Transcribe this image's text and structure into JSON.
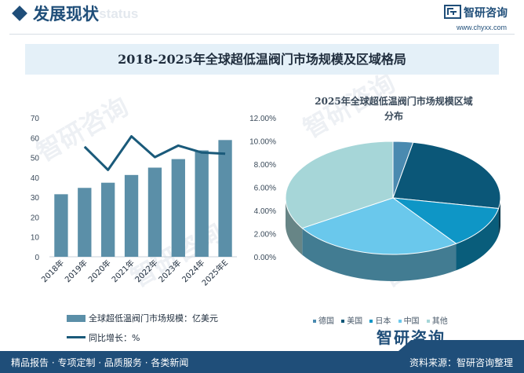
{
  "header": {
    "title": "发展现状",
    "ghost_text": "ent status",
    "logo_name": "智研咨询",
    "logo_url": "www.chyxx.com"
  },
  "banner_title": "2018-2025年全球超低温阀门市场规模及区域格局",
  "watermark_text": "智研咨询",
  "chart_data": [
    {
      "type": "bar",
      "categories": [
        "2018年",
        "2019年",
        "2020年",
        "2021年",
        "2022年",
        "2023年",
        "2024年",
        "2025年E"
      ],
      "series": [
        {
          "name": "全球超低温阀门市场规模：亿美元",
          "type": "bar",
          "axis": "left",
          "values": [
            31.5,
            34.7,
            37.3,
            41.2,
            44.9,
            49.2,
            53.6,
            58.8
          ]
        },
        {
          "name": "同比增长：%",
          "type": "line",
          "axis": "right",
          "values": [
            null,
            9.5,
            7.5,
            10.4,
            8.6,
            9.6,
            9.0,
            8.9
          ]
        }
      ],
      "left_axis": {
        "ylim": [
          0,
          70
        ],
        "ticks": [
          "0",
          "10",
          "20",
          "30",
          "40",
          "50",
          "60",
          "70"
        ]
      },
      "right_axis": {
        "ylim": [
          0,
          12
        ],
        "ticks": [
          "0.00%",
          "2.00%",
          "4.00%",
          "6.00%",
          "8.00%",
          "10.00%",
          "12.00%"
        ]
      },
      "legend": [
        "全球超低温阀门市场规模：亿美元",
        "同比增长：%"
      ]
    },
    {
      "type": "pie",
      "title": "2025年全球超低温阀门市场规模区域分布",
      "title_lines": [
        "2025年全球超低温阀门市场规模区域",
        "分布"
      ],
      "labels": [
        "德国",
        "美国",
        "日本",
        "中国",
        "其他"
      ],
      "values": [
        3,
        25,
        12,
        26,
        34
      ],
      "colors": [
        "#4a8ab0",
        "#0b5778",
        "#0e96c6",
        "#6ac8ec",
        "#a6d6d8"
      ],
      "legend_position": "bottom"
    }
  ],
  "colors": {
    "bar": "#5b8fa8",
    "line": "#1a5a7a",
    "brand": "#1f4e79",
    "banner_bg": "#e4f0f8"
  },
  "footer": {
    "left_text": "精品报告 · 专项定制 · 品质服务 · 各类新闻",
    "right_text": "资料来源：智研咨询整理",
    "big_logo": "智研咨询"
  }
}
